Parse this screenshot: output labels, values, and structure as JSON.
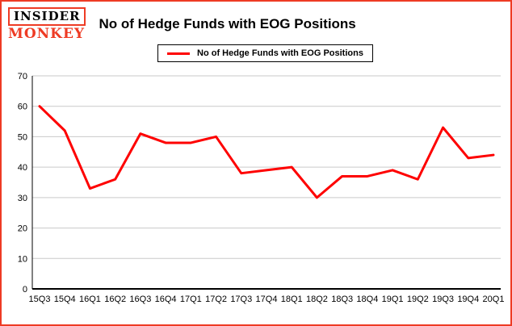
{
  "logo": {
    "line1": "INSIDER",
    "line2": "MONKEY"
  },
  "header": {
    "title": "No of Hedge Funds with EOG Positions"
  },
  "legend": {
    "label": "No of Hedge Funds with EOG Positions"
  },
  "colors": {
    "accent": "#fe0000",
    "frame_border": "#ee3b24",
    "gridline": "#c9c9c9",
    "axis": "#000000"
  },
  "chart_data": {
    "type": "line",
    "title": "No of Hedge Funds with EOG Positions",
    "categories": [
      "15Q3",
      "15Q4",
      "16Q1",
      "16Q2",
      "16Q3",
      "16Q4",
      "17Q1",
      "17Q2",
      "17Q3",
      "17Q4",
      "18Q1",
      "18Q2",
      "18Q3",
      "18Q4",
      "19Q1",
      "19Q2",
      "19Q3",
      "19Q4",
      "20Q1"
    ],
    "values": [
      60,
      52,
      33,
      36,
      51,
      48,
      48,
      50,
      38,
      39,
      40,
      30,
      37,
      37,
      39,
      36,
      53,
      43,
      44
    ],
    "series_name": "No of Hedge Funds with EOG Positions",
    "xlabel": "",
    "ylabel": "",
    "ylim": [
      0,
      70
    ],
    "yticks": [
      0,
      10,
      20,
      30,
      40,
      50,
      60,
      70
    ],
    "grid": true,
    "legend_position": "top",
    "line_color": "#fe0000"
  }
}
